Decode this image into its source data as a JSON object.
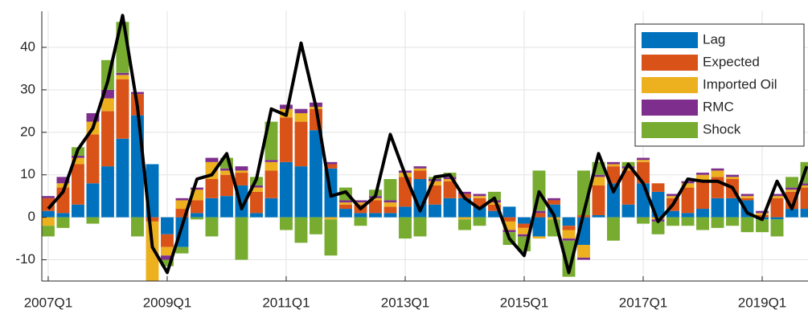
{
  "chart_data": {
    "type": "stacked_bar_line",
    "categories": [
      "2007Q1",
      null,
      null,
      null,
      null,
      null,
      null,
      null,
      "2009Q1",
      null,
      null,
      null,
      null,
      null,
      null,
      null,
      "2011Q1",
      null,
      null,
      null,
      null,
      null,
      null,
      null,
      "2013Q1",
      null,
      null,
      null,
      null,
      null,
      null,
      null,
      "2015Q1",
      null,
      null,
      null,
      null,
      null,
      null,
      null,
      "2017Q1",
      null,
      null,
      null,
      null,
      null,
      null,
      null,
      "2019Q1",
      null,
      null,
      null
    ],
    "series": [
      {
        "name": "Lag",
        "color": "#0072BD",
        "values": [
          1.5,
          1,
          3,
          8,
          12,
          18.5,
          24,
          12.5,
          -4,
          -7,
          1,
          4.5,
          5,
          7.5,
          1,
          4.5,
          13,
          12,
          20.5,
          11.5,
          2,
          1,
          1,
          1,
          2.5,
          9,
          3,
          4.5,
          4.5,
          2.5,
          1.5,
          2.5,
          -1.5,
          -4.5,
          3,
          -2,
          -6.5,
          0.5,
          8,
          3,
          8,
          6,
          1.5,
          1,
          2,
          4.5,
          4.5,
          4,
          -0.5,
          -0.5,
          2,
          2
        ]
      },
      {
        "name": "Expected",
        "color": "#D95319",
        "values": [
          3,
          6,
          9.5,
          11.5,
          13,
          14,
          5,
          -1,
          -3,
          2,
          3,
          4.5,
          5,
          3,
          5,
          6.5,
          10.5,
          10.5,
          5,
          1,
          1,
          2,
          3,
          1.5,
          7,
          2,
          4.5,
          4,
          1,
          2,
          1.5,
          -1,
          -1,
          1,
          1,
          -1,
          0.5,
          7,
          4,
          8,
          5,
          2,
          3,
          6,
          6.5,
          5,
          4.5,
          0.5,
          0.5,
          4.5,
          4,
          5
        ]
      },
      {
        "name": "Imported Oil",
        "color": "#EDB120",
        "values": [
          -2,
          1,
          1.5,
          3,
          3,
          1,
          0,
          -14,
          -2,
          2,
          2.5,
          4,
          1,
          0.5,
          1,
          2,
          2,
          2,
          0.5,
          -0.5,
          0.5,
          0.5,
          0.5,
          1,
          1,
          0.5,
          1,
          0.5,
          -0.5,
          0.5,
          0.5,
          -2,
          -1.5,
          -0.5,
          -0.5,
          -2,
          -3,
          2,
          0.5,
          0.5,
          0.5,
          -0.5,
          0.5,
          1,
          1.5,
          1.5,
          0.5,
          0.5,
          0.5,
          0.5,
          0.5,
          0.5
        ]
      },
      {
        "name": "RMC",
        "color": "#7E2F8E",
        "values": [
          0.5,
          1.5,
          0.5,
          2,
          2,
          0.5,
          0.5,
          -2,
          -1,
          0.5,
          0.5,
          1,
          0.5,
          1,
          0.5,
          0.5,
          1,
          1,
          1,
          0.5,
          0.5,
          0.5,
          0.5,
          0.5,
          0.5,
          0.5,
          0.5,
          0.5,
          0.5,
          0.5,
          0.5,
          -0.5,
          -0.5,
          0.5,
          0.5,
          -0.5,
          -0.5,
          0.5,
          0.5,
          0.5,
          0.5,
          -0.5,
          0.5,
          0.5,
          0.5,
          0.5,
          0.5,
          0.5,
          0.5,
          0.5,
          0.5,
          0.5
        ]
      },
      {
        "name": "Shock",
        "color": "#77AC30",
        "values": [
          -2.5,
          -2.5,
          2,
          -1.5,
          7,
          12,
          -4.5,
          -3,
          -1.5,
          -1.5,
          -0.5,
          -4.5,
          2.5,
          -10,
          2,
          9,
          -3,
          -6,
          -4,
          -8.5,
          3,
          -2,
          1.5,
          5,
          -5,
          -4.5,
          0.5,
          1,
          -2.5,
          -2,
          2,
          -3,
          -3.5,
          9.5,
          -4,
          -8.5,
          10.5,
          3,
          -5.5,
          1,
          -1.5,
          -3,
          -2,
          -2,
          -3,
          -2.5,
          -2,
          -3.5,
          -3,
          -4,
          2.5,
          5
        ]
      },
      {
        "type": "line",
        "color": "#000000",
        "values": [
          2,
          6,
          16,
          21,
          32,
          47.5,
          26,
          -7,
          -13,
          -2,
          9,
          10,
          15,
          2,
          9,
          25.5,
          24,
          41,
          26,
          5,
          6,
          2,
          5,
          19.5,
          10,
          1.5,
          9.5,
          10,
          4.5,
          2,
          4.5,
          -5,
          -9,
          6,
          0.5,
          -13,
          1,
          15,
          6,
          12.5,
          8,
          -1,
          3,
          9,
          8.5,
          8.5,
          7,
          1,
          -0.5,
          8.5,
          2,
          12
        ]
      }
    ],
    "xlim": [
      -0.43,
      51.08
    ],
    "ylim": [
      -15,
      48.5
    ],
    "yticks": [
      -10,
      0,
      10,
      20,
      30,
      40
    ],
    "grid": true,
    "legend": "upper right"
  }
}
